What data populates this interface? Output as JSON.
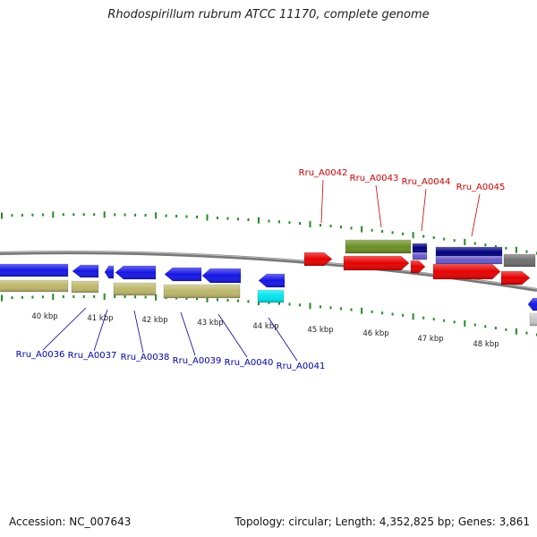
{
  "title": "Rhodospirillum rubrum ATCC 11170, complete genome",
  "footer": {
    "accession": "Accession: NC_007643",
    "info": "Topology: circular; Length: 4,352,825 bp; Genes: 3,861"
  },
  "colors": {
    "backbone": "#777777",
    "tick": "#228b22",
    "forward_label": "#cc0000",
    "reverse_label": "#0000aa",
    "cds_red": "#e60000",
    "cds_blue": "#1515e6",
    "rna_olive": "#6b8e23",
    "khaki": "#bdb76b",
    "navy": "#000080",
    "slate": "#6a5acd",
    "gray": "#6e6e6e",
    "cyan": "#00e5ee",
    "silver": "#c8c8c8"
  },
  "scale": {
    "labels": [
      "40 kbp",
      "41 kbp",
      "42 kbp",
      "43 kbp",
      "44 kbp",
      "45 kbp",
      "46 kbp",
      "47 kbp",
      "48 kbp"
    ]
  },
  "genes": [
    {
      "label": "Rru_A0036",
      "strand": "reverse"
    },
    {
      "label": "Rru_A0037",
      "strand": "reverse"
    },
    {
      "label": "Rru_A0038",
      "strand": "reverse"
    },
    {
      "label": "Rru_A0039",
      "strand": "reverse"
    },
    {
      "label": "Rru_A0040",
      "strand": "reverse"
    },
    {
      "label": "Rru_A0041",
      "strand": "reverse"
    },
    {
      "label": "Rru_A0042",
      "strand": "forward"
    },
    {
      "label": "Rru_A0043",
      "strand": "forward"
    },
    {
      "label": "Rru_A0044",
      "strand": "forward"
    },
    {
      "label": "Rru_A0045",
      "strand": "forward"
    }
  ]
}
